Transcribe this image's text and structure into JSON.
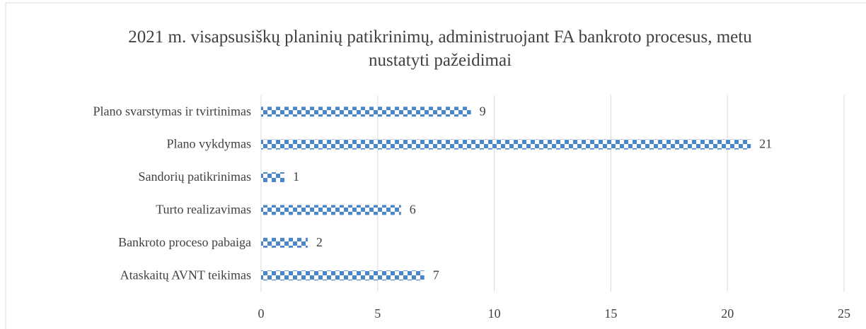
{
  "chart_data": {
    "type": "bar",
    "orientation": "horizontal",
    "title": "2021 m. visapsusiškų planinių patikrinimų, administruojant FA bankroto procesus, metu nustatyti pažeidimai",
    "categories": [
      "Plano svarstymas ir tvirtinimas",
      "Plano vykdymas",
      "Sandorių patikrinimas",
      "Turto realizavimas",
      "Bankroto proceso pabaiga",
      "Ataskaitų AVNT teikimas"
    ],
    "values": [
      9,
      21,
      1,
      6,
      2,
      7
    ],
    "color": "#4a86c8",
    "xlim": [
      0,
      25
    ],
    "xticks": [
      0,
      5,
      10,
      15,
      20,
      25
    ],
    "grid": true
  }
}
